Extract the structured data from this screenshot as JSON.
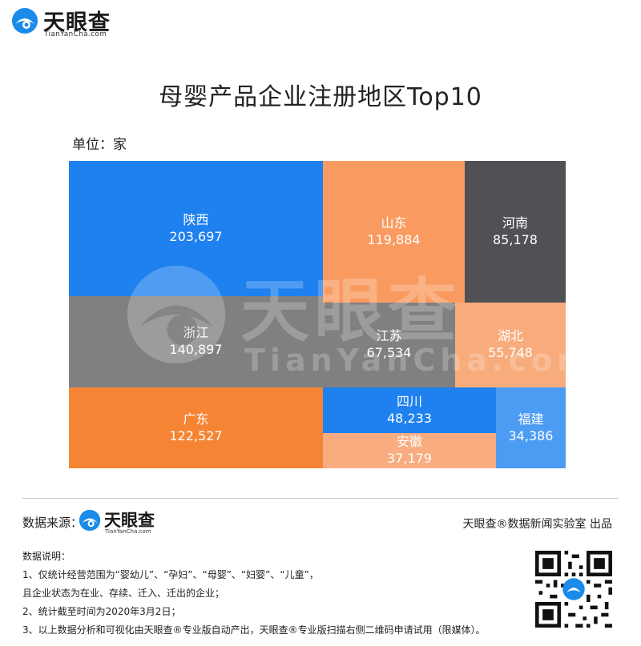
{
  "header": {
    "logo_cn": "天眼查",
    "logo_en": "TianYanCha.com"
  },
  "chart_data": {
    "type": "treemap",
    "title": "母婴产品企业注册地区Top10",
    "unit": "单位：家",
    "items": [
      {
        "name": "陕西",
        "value": 203697,
        "label": "203,697",
        "color": "#1f80f0"
      },
      {
        "name": "浙江",
        "value": 140897,
        "label": "140,897",
        "color": "#808080"
      },
      {
        "name": "广东",
        "value": 122527,
        "label": "122,527",
        "color": "#f58534"
      },
      {
        "name": "山东",
        "value": 119884,
        "label": "119,884",
        "color": "#f99b61"
      },
      {
        "name": "河南",
        "value": 85178,
        "label": "85,178",
        "color": "#505155"
      },
      {
        "name": "江苏",
        "value": 67534,
        "label": "67,534",
        "color": "#808080"
      },
      {
        "name": "湖北",
        "value": 55748,
        "label": "55,748",
        "color": "#f8ac7c"
      },
      {
        "name": "四川",
        "value": 48233,
        "label": "48,233",
        "color": "#1f80f0"
      },
      {
        "name": "安徽",
        "value": 37179,
        "label": "37,179",
        "color": "#f9ac80"
      },
      {
        "name": "福建",
        "value": 34386,
        "label": "34,386",
        "color": "#4d9cf4"
      }
    ]
  },
  "watermark": {
    "cn": "天眼查",
    "en": "TianYanCha.com"
  },
  "footer": {
    "source_label": "数据来源：",
    "source_logo_cn": "天眼查",
    "source_logo_en": "TianYanCha.com",
    "publisher": "天眼查®数据新闻实验室 出品",
    "notes_title": "数据说明：",
    "notes": [
      "1、仅统计经营范围为“婴幼儿”、“孕妇”、“母婴”、“妇婴”、“儿童”，",
      "且企业状态为在业、存续、迁入、迁出的企业；",
      "2、统计截至时间为2020年3月2日；",
      "3、以上数据分析和可视化由天眼查®专业版自动产出，天眼查®专业版扫描右侧二维码申请试用（限媒体）。"
    ]
  },
  "colors": {
    "brand_blue": "#1a8be8",
    "orange": "#f58534",
    "gray": "#808080"
  }
}
